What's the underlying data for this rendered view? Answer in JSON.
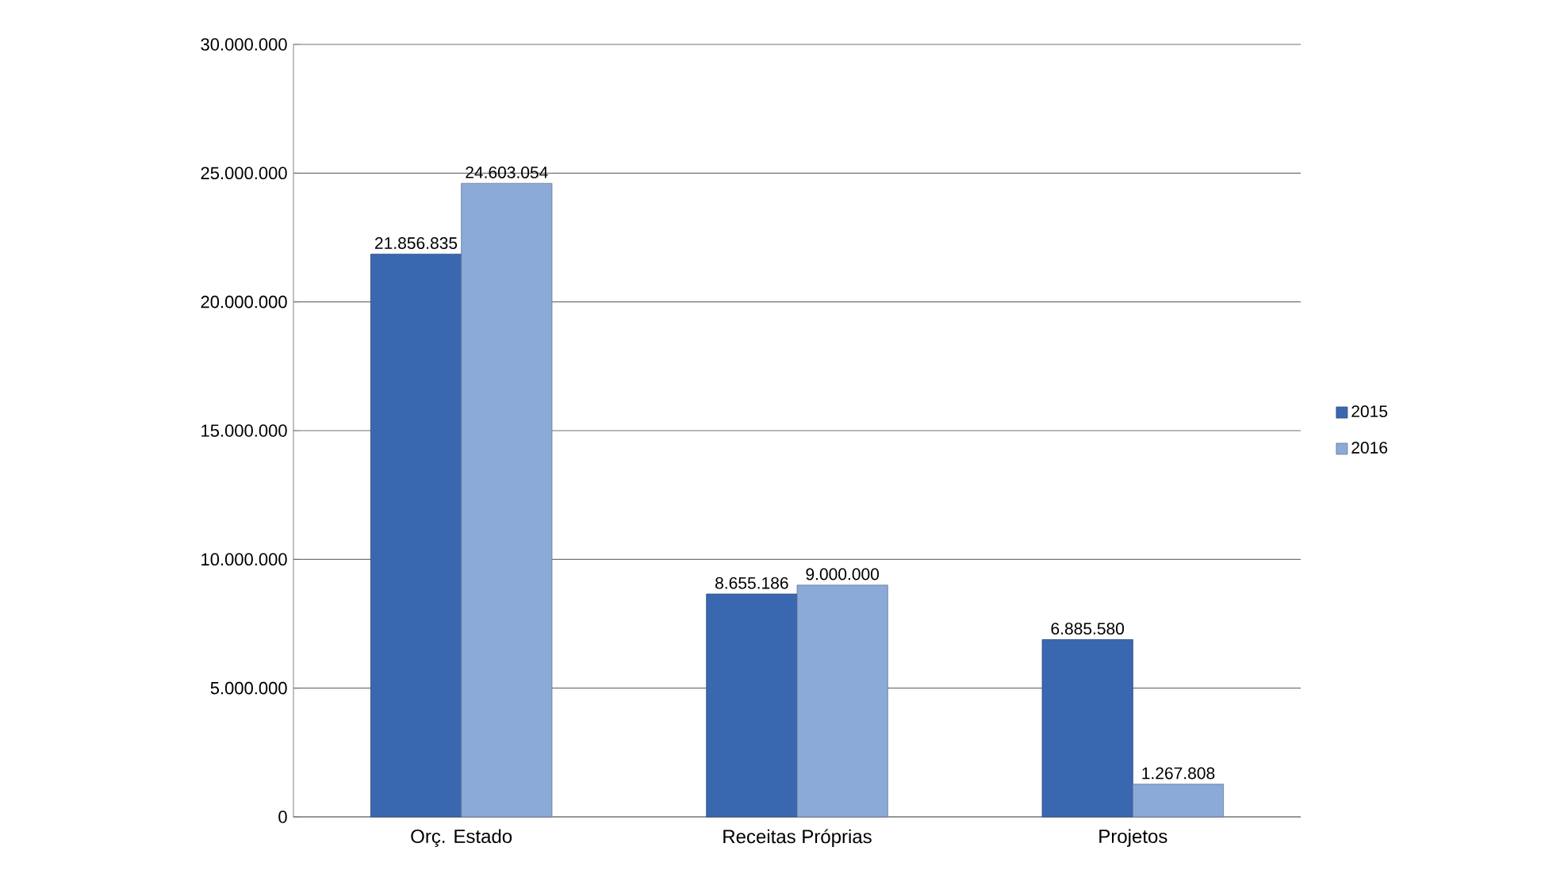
{
  "chart_data": {
    "type": "bar",
    "categories": [
      "Orç. Estado",
      "Receitas Próprias",
      "Projetos"
    ],
    "series": [
      {
        "name": "2015",
        "color": "#3a68b0",
        "values": [
          21856835,
          8655186,
          6885580
        ],
        "value_labels": [
          "21.856.835",
          "8.655.186",
          "6.885.580"
        ]
      },
      {
        "name": "2016",
        "color": "#8caad8",
        "values": [
          24603054,
          9000000,
          1267808
        ],
        "value_labels": [
          "24.603.054",
          "9.000.000",
          "1.267.808"
        ]
      }
    ],
    "ylim": [
      0,
      30000000
    ],
    "yticks": [
      {
        "value": 0,
        "label": "0"
      },
      {
        "value": 5000000,
        "label": "5.000.000"
      },
      {
        "value": 10000000,
        "label": "10.000.000"
      },
      {
        "value": 15000000,
        "label": "15.000.000"
      },
      {
        "value": 20000000,
        "label": "20.000.000"
      },
      {
        "value": 25000000,
        "label": "25.000.000"
      },
      {
        "value": 30000000,
        "label": "30.000.000"
      }
    ],
    "grid": "y",
    "legend": "right"
  }
}
